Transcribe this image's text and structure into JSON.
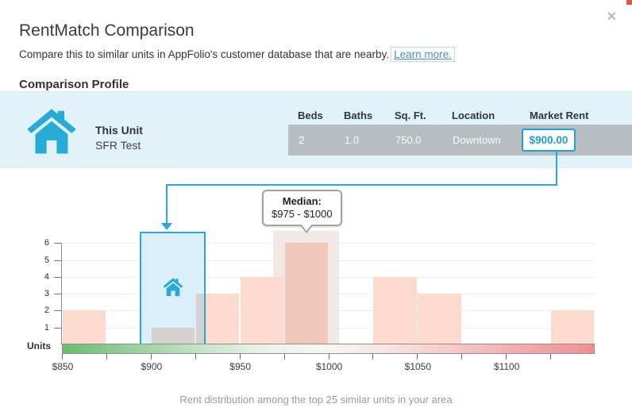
{
  "header": {
    "title": "RentMatch Comparison",
    "subtitle": "Compare this to similar units in AppFolio's customer database that are nearby.",
    "learn_more_label": "Learn more.",
    "close_label": "✕"
  },
  "section": {
    "heading": "Comparison Profile"
  },
  "profile": {
    "unit_title": "This Unit",
    "unit_name": "SFR Test",
    "columns": [
      "Beds",
      "Baths",
      "Sq. Ft.",
      "Location",
      "Market Rent"
    ],
    "values": [
      "2",
      "1.0",
      "750.0",
      "Downtown"
    ],
    "market_rent": "$900.00"
  },
  "chart": {
    "median_label": "Median:",
    "median_value": "$975 - $1000",
    "caption": "Rent distribution among the top 25 similar units in your area"
  },
  "chart_data": {
    "type": "bar",
    "title": "",
    "ylabel": "Units",
    "bin_width_dollars": 25,
    "bin_starts": [
      850,
      875,
      900,
      925,
      950,
      975,
      1000,
      1025,
      1050,
      1075,
      1100,
      1125
    ],
    "values": [
      2,
      0,
      1,
      3,
      4,
      6,
      0,
      4,
      3,
      0,
      0,
      2
    ],
    "y_ticks": [
      1,
      2,
      3,
      4,
      5,
      6
    ],
    "ylim": [
      0,
      6.7
    ],
    "x_axis_labels": [
      "$850",
      "$900",
      "$950",
      "$1000",
      "$1050",
      "$1100"
    ],
    "x_label_every_dollars": 50,
    "total_units": 25,
    "median_range_dollars": [
      975,
      1000
    ],
    "unit_market_rent_dollars": 900,
    "unit_highlight_range_dollars": [
      894,
      931
    ],
    "median_band_range_dollars": [
      969,
      1006
    ],
    "legend_gradient": "green-to-red"
  },
  "colors": {
    "accent_cyan": "#29a9d9",
    "bar_pink": "#fcdacd",
    "bar_salmon": "#f0c9ba",
    "bar_gray": "#d7d2d2",
    "region_fill": "#dbeffa",
    "median_band": "#f2e9e6",
    "row_gray": "#b7bdc0",
    "panel_blue": "#e1f2f9",
    "link_blue": "#4792c8"
  }
}
